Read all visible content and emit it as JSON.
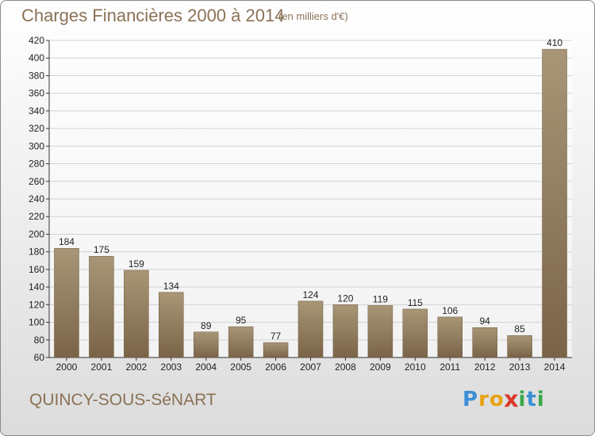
{
  "header": {
    "title": "Charges Financières 2000 à 2014",
    "unit_note": "(en milliers d'€)"
  },
  "footer": {
    "commune": "QUINCY-SOUS-SéNART",
    "logo_letters": [
      {
        "ch": "P",
        "color": "#3c8fd6"
      },
      {
        "ch": "r",
        "color": "#e8a214"
      },
      {
        "ch": "o",
        "color": "#e8a214"
      },
      {
        "ch": "x",
        "color": "#d93a2b"
      },
      {
        "ch": "i",
        "color": "#3aa84a"
      },
      {
        "ch": "t",
        "color": "#3c8fd6"
      },
      {
        "ch": "i",
        "color": "#3aa84a"
      }
    ]
  },
  "colors": {
    "bar_top": "#a89676",
    "bar_bottom": "#7a6448",
    "text": "#8a7256",
    "grid": "#d2d2d2"
  },
  "chart_data": {
    "type": "bar",
    "title": "Charges Financières 2000 à 2014",
    "subtitle": "(en milliers d'€)",
    "categories": [
      "2000",
      "2001",
      "2002",
      "2003",
      "2004",
      "2005",
      "2006",
      "2007",
      "2008",
      "2009",
      "2010",
      "2011",
      "2012",
      "2013",
      "2014"
    ],
    "values": [
      184,
      175,
      159,
      134,
      89,
      95,
      77,
      124,
      120,
      119,
      115,
      106,
      94,
      85,
      410
    ],
    "ylim": [
      60,
      420
    ],
    "yticks": [
      60,
      80,
      100,
      120,
      140,
      160,
      180,
      200,
      220,
      240,
      260,
      280,
      300,
      320,
      340,
      360,
      380,
      400,
      420
    ],
    "grid": true,
    "data_labels": true
  }
}
